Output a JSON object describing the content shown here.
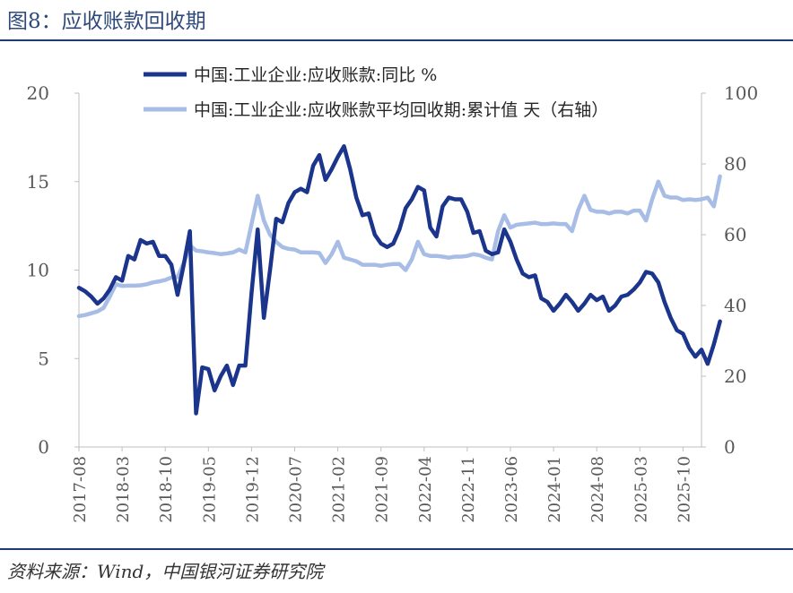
{
  "figure": {
    "title": "图8：应收账款回收期",
    "source": "资料来源：Wind，中国银河证券研究院"
  },
  "colors": {
    "series_left": "#1b348c",
    "series_right": "#a7bde6",
    "axis": "#bfbfbf",
    "tick_text": "#595959",
    "rule": "#1f3a73"
  },
  "chart_data": {
    "type": "line",
    "title": "",
    "legend_position": "top",
    "x_start": "2017-08",
    "x_end": "2026-01",
    "x_tick_labels": [
      "2017-08",
      "2018-03",
      "2018-10",
      "2019-05",
      "2019-12",
      "2020-07",
      "2021-02",
      "2021-09",
      "2022-04",
      "2022-11",
      "2023-06",
      "2024-01",
      "2024-08",
      "2025-03",
      "2025-10"
    ],
    "left_axis": {
      "label": "",
      "ylim": [
        0,
        20
      ],
      "ticks": [
        "0",
        "5",
        "10",
        "15",
        "20"
      ]
    },
    "right_axis": {
      "label": "",
      "ylim": [
        0,
        100
      ],
      "ticks": [
        "0",
        "20",
        "40",
        "60",
        "80",
        "100"
      ]
    },
    "series": [
      {
        "name": "中国:工业企业:应收账款:同比 %",
        "axis": "left",
        "values": [
          9.0,
          8.8,
          8.5,
          8.1,
          8.4,
          8.9,
          9.6,
          9.4,
          10.8,
          10.6,
          11.7,
          11.5,
          11.6,
          10.8,
          10.8,
          10.3,
          8.6,
          10.3,
          12.2,
          1.9,
          4.5,
          4.4,
          3.2,
          4.0,
          4.6,
          3.5,
          4.6,
          4.6,
          8.7,
          12.3,
          7.3,
          10.0,
          12.9,
          12.7,
          13.8,
          14.4,
          14.6,
          14.4,
          15.9,
          16.5,
          15.1,
          15.7,
          16.4,
          17.0,
          15.7,
          14.1,
          13.1,
          13.2,
          12.0,
          11.5,
          11.3,
          11.5,
          12.3,
          13.5,
          14.0,
          14.7,
          14.5,
          12.4,
          11.9,
          13.6,
          14.1,
          14.0,
          14.0,
          13.3,
          12.1,
          12.2,
          11.1,
          10.9,
          11.0,
          12.3,
          11.6,
          10.6,
          9.8,
          9.6,
          9.7,
          8.4,
          8.2,
          7.7,
          8.1,
          8.6,
          8.2,
          7.7,
          8.1,
          8.6,
          8.3,
          8.5,
          7.7,
          8.0,
          8.5,
          8.6,
          8.9,
          9.3,
          9.9,
          9.8,
          9.3,
          8.2,
          7.3,
          6.6,
          6.4,
          5.6,
          5.1,
          5.5,
          4.7,
          5.8,
          7.1
        ]
      },
      {
        "name": "中国:工业企业:应收账款平均回收期:累计值 天（右轴）",
        "axis": "right",
        "values": [
          37.0,
          37.3,
          37.8,
          38.3,
          39.3,
          42.5,
          46.0,
          45.5,
          45.6,
          45.6,
          45.7,
          46.0,
          46.5,
          46.8,
          47.2,
          47.9,
          48.0,
          52.0,
          57.0,
          55.5,
          55.3,
          55.0,
          54.8,
          54.5,
          54.7,
          55.0,
          55.8,
          55.0,
          63.0,
          71.0,
          64.0,
          60.0,
          58.0,
          56.5,
          56.0,
          55.8,
          55.0,
          55.0,
          55.0,
          54.8,
          52.0,
          54.5,
          58.0,
          53.5,
          53.0,
          52.5,
          51.5,
          51.5,
          51.5,
          51.2,
          51.5,
          51.7,
          51.7,
          50.0,
          53.0,
          58.0,
          54.5,
          54.0,
          54.0,
          53.8,
          53.5,
          53.8,
          53.8,
          54.0,
          54.5,
          54.2,
          53.5,
          53.0,
          61.0,
          65.5,
          62.0,
          62.8,
          63.0,
          63.2,
          63.4,
          63.0,
          63.0,
          63.2,
          63.0,
          63.0,
          61.0,
          67.0,
          71.0,
          67.0,
          66.5,
          66.5,
          66.0,
          66.5,
          66.5,
          66.0,
          66.8,
          66.8,
          64.0,
          70.0,
          75.0,
          71.0,
          70.5,
          70.5,
          69.8,
          70.0,
          69.8,
          70.0,
          70.5,
          68.0,
          76.5
        ]
      }
    ]
  }
}
